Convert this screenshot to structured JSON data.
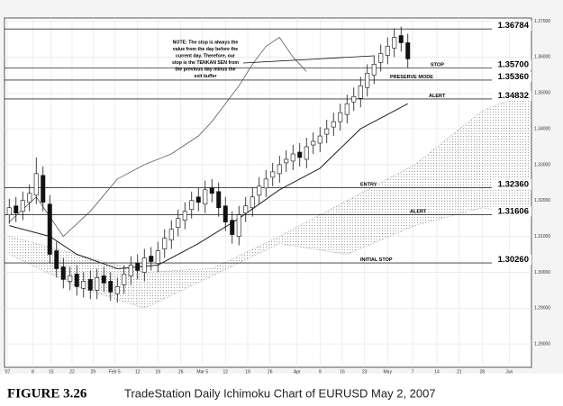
{
  "chart_data": {
    "type": "candlestick",
    "ylim": [
      1.2735,
      1.3709
    ],
    "xlim": [
      -0.7,
      77.3
    ],
    "yticks": [
      {
        "value": 1.28,
        "label": "1.28000"
      },
      {
        "value": 1.29,
        "label": "1.29000"
      },
      {
        "value": 1.3,
        "label": "1.30000"
      },
      {
        "value": 1.31,
        "label": "1.31000"
      },
      {
        "value": 1.32,
        "label": "1.32000"
      },
      {
        "value": 1.33,
        "label": "1.33000"
      },
      {
        "value": 1.34,
        "label": "1.34000"
      },
      {
        "value": 1.35,
        "label": "1.35000"
      },
      {
        "value": 1.36,
        "label": "1.36000"
      },
      {
        "value": 1.37,
        "label": "1.37000"
      }
    ],
    "xticks": [
      {
        "value": -0.3,
        "label": "'07"
      },
      {
        "value": 3.5,
        "label": "8"
      },
      {
        "value": 6.2,
        "label": "15"
      },
      {
        "value": 9.3,
        "label": "22"
      },
      {
        "value": 12.4,
        "label": "29"
      },
      {
        "value": 15.6,
        "label": "Feb 5"
      },
      {
        "value": 19,
        "label": "12"
      },
      {
        "value": 22,
        "label": "19"
      },
      {
        "value": 25.4,
        "label": "26"
      },
      {
        "value": 28.6,
        "label": "Mar 5"
      },
      {
        "value": 32,
        "label": "12"
      },
      {
        "value": 35.3,
        "label": "19"
      },
      {
        "value": 38.6,
        "label": "26"
      },
      {
        "value": 42.6,
        "label": "Apr"
      },
      {
        "value": 46,
        "label": "9"
      },
      {
        "value": 49.3,
        "label": "16"
      },
      {
        "value": 52.6,
        "label": "23"
      },
      {
        "value": 56,
        "label": "May"
      },
      {
        "value": 59.7,
        "label": "7"
      },
      {
        "value": 63.3,
        "label": "14"
      },
      {
        "value": 66.6,
        "label": "21"
      },
      {
        "value": 70,
        "label": "28"
      },
      {
        "value": 74,
        "label": "Jun"
      }
    ],
    "grid": true,
    "open": [
      1.316,
      1.3185,
      1.317,
      1.3195,
      1.3215,
      1.327,
      1.319,
      1.306,
      1.3015,
      1.2975,
      1.2995,
      1.2955,
      1.298,
      1.295,
      1.299,
      1.2975,
      1.294,
      1.2965,
      1.299,
      1.3025,
      1.3,
      1.3045,
      1.3025,
      1.3065,
      1.309,
      1.3125,
      1.3145,
      1.3175,
      1.321,
      1.319,
      1.3235,
      1.3225,
      1.3185,
      1.3145,
      1.31,
      1.3165,
      1.318,
      1.3215,
      1.3235,
      1.3265,
      1.3275,
      1.3305,
      1.331,
      1.3335,
      1.3315,
      1.3355,
      1.336,
      1.3385,
      1.3405,
      1.342,
      1.344,
      1.3475,
      1.3485,
      1.3515,
      1.355,
      1.3585,
      1.3605,
      1.3625,
      1.366,
      1.364
    ],
    "high": [
      1.3205,
      1.321,
      1.3225,
      1.3245,
      1.332,
      1.3295,
      1.3215,
      1.3085,
      1.304,
      1.3015,
      1.302,
      1.3,
      1.3005,
      1.301,
      1.3015,
      1.3,
      1.2985,
      1.302,
      1.3045,
      1.305,
      1.3065,
      1.307,
      1.3085,
      1.312,
      1.3145,
      1.3175,
      1.3195,
      1.3225,
      1.3235,
      1.3255,
      1.326,
      1.325,
      1.321,
      1.317,
      1.3185,
      1.321,
      1.3235,
      1.3265,
      1.3285,
      1.3305,
      1.3325,
      1.334,
      1.3355,
      1.336,
      1.3375,
      1.339,
      1.3405,
      1.3425,
      1.3445,
      1.347,
      1.3495,
      1.3515,
      1.3545,
      1.358,
      1.3605,
      1.3635,
      1.3655,
      1.368,
      1.3685,
      1.3665
    ],
    "low": [
      1.3135,
      1.314,
      1.3145,
      1.317,
      1.319,
      1.317,
      1.3025,
      1.2985,
      1.2955,
      1.295,
      1.2935,
      1.293,
      1.2925,
      1.2925,
      1.2945,
      1.292,
      1.2915,
      1.294,
      1.2965,
      1.298,
      1.2975,
      1.3005,
      1.3,
      1.304,
      1.3065,
      1.31,
      1.312,
      1.315,
      1.317,
      1.3165,
      1.3195,
      1.3155,
      1.3115,
      1.308,
      1.3075,
      1.314,
      1.3155,
      1.319,
      1.321,
      1.324,
      1.325,
      1.328,
      1.3285,
      1.3295,
      1.329,
      1.333,
      1.3335,
      1.336,
      1.338,
      1.3395,
      1.3415,
      1.345,
      1.346,
      1.349,
      1.3525,
      1.356,
      1.358,
      1.36,
      1.3615,
      1.357
    ],
    "close": [
      1.318,
      1.3165,
      1.32,
      1.322,
      1.3275,
      1.3195,
      1.305,
      1.301,
      1.298,
      1.299,
      1.296,
      1.2975,
      1.295,
      1.2985,
      1.297,
      1.2945,
      1.296,
      1.2995,
      1.302,
      1.3005,
      1.304,
      1.303,
      1.306,
      1.3095,
      1.312,
      1.315,
      1.317,
      1.32,
      1.3195,
      1.323,
      1.322,
      1.318,
      1.314,
      1.3105,
      1.316,
      1.3185,
      1.321,
      1.324,
      1.326,
      1.328,
      1.33,
      1.3315,
      1.333,
      1.332,
      1.335,
      1.3365,
      1.338,
      1.34,
      1.342,
      1.3445,
      1.347,
      1.349,
      1.352,
      1.3555,
      1.358,
      1.361,
      1.363,
      1.3655,
      1.364,
      1.3595
    ],
    "lines": [
      {
        "color": "#222222",
        "x": [
          0,
          6,
          10,
          16,
          22,
          28,
          34,
          40,
          46,
          52,
          59
        ],
        "values": [
          1.313,
          1.31,
          1.305,
          1.301,
          1.302,
          1.308,
          1.315,
          1.323,
          1.329,
          1.34,
          1.347
        ]
      },
      {
        "color": "#444444",
        "x": [
          0,
          4,
          8,
          12,
          16,
          20,
          24,
          28,
          30,
          32,
          34,
          36,
          38,
          40,
          42,
          44
        ],
        "values": [
          1.314,
          1.321,
          1.31,
          1.317,
          1.326,
          1.33,
          1.333,
          1.338,
          1.342,
          1.347,
          1.352,
          1.358,
          1.363,
          1.3655,
          1.36,
          1.356
        ]
      }
    ],
    "cloud": {
      "color": "#999999",
      "x": [
        0,
        10,
        20,
        30,
        40,
        50,
        60,
        70,
        77
      ],
      "span_a": [
        1.31,
        1.305,
        1.3,
        1.301,
        1.31,
        1.32,
        1.33,
        1.345,
        1.35
      ],
      "span_b": [
        1.305,
        1.296,
        1.29,
        1.299,
        1.308,
        1.305,
        1.313,
        1.318,
        1.316
      ]
    },
    "levels": [
      {
        "value": 1.36784
      },
      {
        "value": 1.357,
        "label": "1.35700",
        "text": "STOP"
      },
      {
        "value": 1.3536,
        "label": "1.35360",
        "text": "PRESERVE MODE"
      },
      {
        "value": 1.34832,
        "text": "ALERT"
      },
      {
        "value": 1.3236,
        "label": "1.32360",
        "text": "ENTRY"
      },
      {
        "value": 1.31606,
        "text": "ALERT"
      },
      {
        "value": 1.3026,
        "label": "1.30260",
        "text": "INITIAL STOP"
      }
    ],
    "note": [
      "NOTE: The stop is always the",
      "value from the day before the",
      "current day.  Therefore, our",
      "stop is the TENKAN SEN from",
      "the previous day minus the",
      "exit buffer"
    ]
  },
  "caption": {
    "figure": "FIGURE 3.26",
    "text": "TradeStation Daily Ichimoku Chart of EURUSD May 2, 2007"
  }
}
